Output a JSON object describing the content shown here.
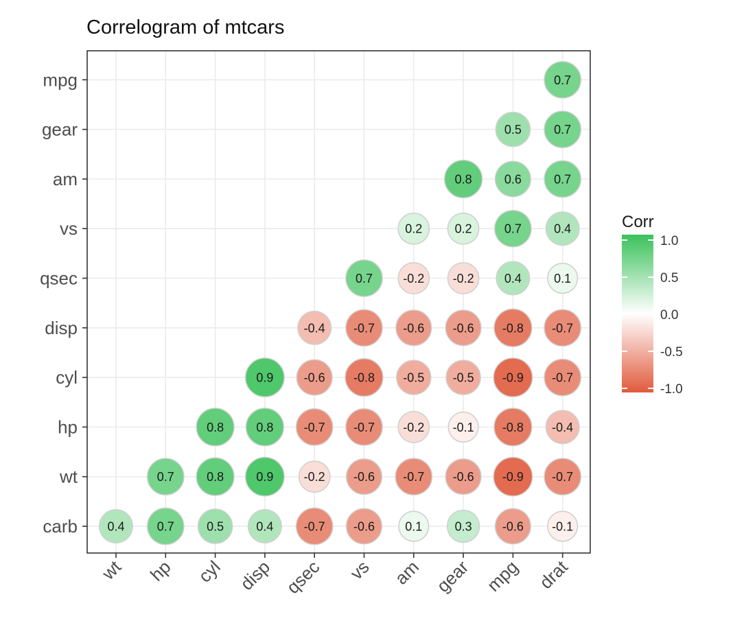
{
  "chart_data": {
    "type": "scatter",
    "title": "Correlogram of mtcars",
    "x_categories": [
      "wt",
      "hp",
      "cyl",
      "disp",
      "qsec",
      "vs",
      "am",
      "gear",
      "mpg",
      "drat"
    ],
    "y_categories": [
      "carb",
      "wt",
      "hp",
      "cyl",
      "disp",
      "qsec",
      "vs",
      "am",
      "gear",
      "mpg"
    ],
    "legend": {
      "title": "Corr",
      "ticks": [
        "1.0",
        "0.5",
        "0.0",
        "-0.5",
        "-1.0"
      ],
      "tick_values": [
        1.0,
        0.5,
        0.0,
        -0.5,
        -1.0
      ],
      "range": [
        -1,
        1
      ],
      "placement": "right"
    },
    "colors": {
      "low": "#e05a3c",
      "mid": "#ffffff",
      "high": "#3bc15a",
      "grid": "#ebebeb",
      "panel_border": "#333333"
    },
    "cells": [
      {
        "x": "drat",
        "y": "mpg",
        "value": 0.7,
        "label": "0.7"
      },
      {
        "x": "mpg",
        "y": "gear",
        "value": 0.5,
        "label": "0.5"
      },
      {
        "x": "drat",
        "y": "gear",
        "value": 0.7,
        "label": "0.7"
      },
      {
        "x": "gear",
        "y": "am",
        "value": 0.8,
        "label": "0.8"
      },
      {
        "x": "mpg",
        "y": "am",
        "value": 0.6,
        "label": "0.6"
      },
      {
        "x": "drat",
        "y": "am",
        "value": 0.7,
        "label": "0.7"
      },
      {
        "x": "am",
        "y": "vs",
        "value": 0.2,
        "label": "0.2"
      },
      {
        "x": "gear",
        "y": "vs",
        "value": 0.2,
        "label": "0.2"
      },
      {
        "x": "mpg",
        "y": "vs",
        "value": 0.7,
        "label": "0.7"
      },
      {
        "x": "drat",
        "y": "vs",
        "value": 0.4,
        "label": "0.4"
      },
      {
        "x": "vs",
        "y": "qsec",
        "value": 0.7,
        "label": "0.7"
      },
      {
        "x": "am",
        "y": "qsec",
        "value": -0.2,
        "label": "-0.2"
      },
      {
        "x": "gear",
        "y": "qsec",
        "value": -0.2,
        "label": "-0.2"
      },
      {
        "x": "mpg",
        "y": "qsec",
        "value": 0.4,
        "label": "0.4"
      },
      {
        "x": "drat",
        "y": "qsec",
        "value": 0.1,
        "label": "0.1"
      },
      {
        "x": "qsec",
        "y": "disp",
        "value": -0.4,
        "label": "-0.4"
      },
      {
        "x": "vs",
        "y": "disp",
        "value": -0.7,
        "label": "-0.7"
      },
      {
        "x": "am",
        "y": "disp",
        "value": -0.6,
        "label": "-0.6"
      },
      {
        "x": "gear",
        "y": "disp",
        "value": -0.6,
        "label": "-0.6"
      },
      {
        "x": "mpg",
        "y": "disp",
        "value": -0.8,
        "label": "-0.8"
      },
      {
        "x": "drat",
        "y": "disp",
        "value": -0.7,
        "label": "-0.7"
      },
      {
        "x": "disp",
        "y": "cyl",
        "value": 0.9,
        "label": "0.9"
      },
      {
        "x": "qsec",
        "y": "cyl",
        "value": -0.6,
        "label": "-0.6"
      },
      {
        "x": "vs",
        "y": "cyl",
        "value": -0.8,
        "label": "-0.8"
      },
      {
        "x": "am",
        "y": "cyl",
        "value": -0.5,
        "label": "-0.5"
      },
      {
        "x": "gear",
        "y": "cyl",
        "value": -0.5,
        "label": "-0.5"
      },
      {
        "x": "mpg",
        "y": "cyl",
        "value": -0.9,
        "label": "-0.9"
      },
      {
        "x": "drat",
        "y": "cyl",
        "value": -0.7,
        "label": "-0.7"
      },
      {
        "x": "cyl",
        "y": "hp",
        "value": 0.8,
        "label": "0.8"
      },
      {
        "x": "disp",
        "y": "hp",
        "value": 0.8,
        "label": "0.8"
      },
      {
        "x": "qsec",
        "y": "hp",
        "value": -0.7,
        "label": "-0.7"
      },
      {
        "x": "vs",
        "y": "hp",
        "value": -0.7,
        "label": "-0.7"
      },
      {
        "x": "am",
        "y": "hp",
        "value": -0.2,
        "label": "-0.2"
      },
      {
        "x": "gear",
        "y": "hp",
        "value": -0.1,
        "label": "-0.1"
      },
      {
        "x": "mpg",
        "y": "hp",
        "value": -0.8,
        "label": "-0.8"
      },
      {
        "x": "drat",
        "y": "hp",
        "value": -0.4,
        "label": "-0.4"
      },
      {
        "x": "hp",
        "y": "wt",
        "value": 0.7,
        "label": "0.7"
      },
      {
        "x": "cyl",
        "y": "wt",
        "value": 0.8,
        "label": "0.8"
      },
      {
        "x": "disp",
        "y": "wt",
        "value": 0.9,
        "label": "0.9"
      },
      {
        "x": "qsec",
        "y": "wt",
        "value": -0.2,
        "label": "-0.2"
      },
      {
        "x": "vs",
        "y": "wt",
        "value": -0.6,
        "label": "-0.6"
      },
      {
        "x": "am",
        "y": "wt",
        "value": -0.7,
        "label": "-0.7"
      },
      {
        "x": "gear",
        "y": "wt",
        "value": -0.6,
        "label": "-0.6"
      },
      {
        "x": "mpg",
        "y": "wt",
        "value": -0.9,
        "label": "-0.9"
      },
      {
        "x": "drat",
        "y": "wt",
        "value": -0.7,
        "label": "-0.7"
      },
      {
        "x": "wt",
        "y": "carb",
        "value": 0.4,
        "label": "0.4"
      },
      {
        "x": "hp",
        "y": "carb",
        "value": 0.7,
        "label": "0.7"
      },
      {
        "x": "cyl",
        "y": "carb",
        "value": 0.5,
        "label": "0.5"
      },
      {
        "x": "disp",
        "y": "carb",
        "value": 0.4,
        "label": "0.4"
      },
      {
        "x": "qsec",
        "y": "carb",
        "value": -0.7,
        "label": "-0.7"
      },
      {
        "x": "vs",
        "y": "carb",
        "value": -0.6,
        "label": "-0.6"
      },
      {
        "x": "am",
        "y": "carb",
        "value": 0.1,
        "label": "0.1"
      },
      {
        "x": "gear",
        "y": "carb",
        "value": 0.3,
        "label": "0.3"
      },
      {
        "x": "mpg",
        "y": "carb",
        "value": -0.6,
        "label": "-0.6"
      },
      {
        "x": "drat",
        "y": "carb",
        "value": -0.1,
        "label": "-0.1"
      }
    ]
  }
}
